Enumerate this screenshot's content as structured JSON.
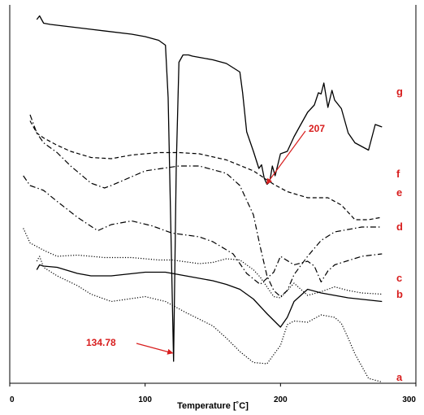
{
  "chart_data": {
    "type": "line",
    "title": "",
    "xlabel": "Temperature [˚C]",
    "ylabel": "",
    "xlim": [
      0,
      300
    ],
    "x_ticks": [
      0,
      100,
      200,
      300
    ],
    "grid": false,
    "legend": "labels at right end of curves",
    "colors": {
      "axis": "#000000",
      "curve": "#000000",
      "annotation": "#d81e1e"
    },
    "series": [
      {
        "name": "a",
        "style": "dotted",
        "x": [
          20,
          22,
          25,
          35,
          50,
          60,
          75,
          100,
          115,
          130,
          150,
          160,
          170,
          180,
          190,
          200,
          205,
          210,
          220,
          230,
          240,
          245,
          250,
          255,
          265,
          275
        ],
        "values": [
          100,
          104,
          95,
          88,
          80,
          73,
          67,
          71,
          67,
          58,
          47,
          37,
          26,
          17,
          16,
          31,
          48,
          51,
          50,
          56,
          54,
          49,
          37,
          24,
          4,
          1
        ]
      },
      {
        "name": "b",
        "style": "solid",
        "x": [
          20,
          22,
          25,
          35,
          50,
          60,
          75,
          100,
          115,
          130,
          150,
          160,
          170,
          180,
          190,
          200,
          205,
          210,
          220,
          230,
          250,
          275
        ],
        "values": [
          93,
          97,
          96,
          95,
          90,
          88,
          88,
          91,
          91,
          88,
          84,
          81,
          77,
          69,
          57,
          46,
          54,
          67,
          77,
          74,
          70,
          67
        ]
      },
      {
        "name": "c",
        "style": "dotted",
        "x": [
          10,
          15,
          25,
          35,
          50,
          70,
          90,
          110,
          120,
          140,
          150,
          160,
          170,
          180,
          185,
          195,
          200,
          210,
          220,
          230,
          240,
          250,
          260,
          275
        ],
        "values": [
          127,
          115,
          109,
          104,
          105,
          103,
          103,
          101,
          101,
          98,
          99,
          102,
          101,
          93,
          87,
          71,
          70,
          82,
          72,
          75,
          79,
          76,
          74,
          73
        ]
      },
      {
        "name": "d",
        "style": "dash-dot",
        "x": [
          10,
          15,
          25,
          35,
          50,
          65,
          75,
          90,
          105,
          120,
          140,
          150,
          165,
          175,
          185,
          195,
          200,
          210,
          220,
          225,
          230,
          235,
          240,
          260,
          275
        ],
        "values": [
          170,
          162,
          158,
          149,
          136,
          125,
          130,
          133,
          129,
          123,
          120,
          116,
          106,
          90,
          81,
          91,
          104,
          97,
          100,
          96,
          83,
          92,
          97,
          104,
          106
        ]
      },
      {
        "name": "e",
        "style": "dash-dot",
        "x": [
          15,
          20,
          25,
          35,
          45,
          60,
          70,
          75,
          100,
          125,
          140,
          160,
          170,
          180,
          185,
          190,
          195,
          200,
          205,
          210,
          220,
          230,
          240,
          250,
          260,
          275
        ],
        "values": [
          220,
          205,
          197,
          189,
          178,
          164,
          160,
          162,
          174,
          178,
          178,
          172,
          162,
          138,
          112,
          88,
          76,
          71,
          76,
          89,
          104,
          117,
          124,
          126,
          128,
          128
        ]
      },
      {
        "name": "f",
        "style": "dashed",
        "x": [
          15,
          20,
          25,
          35,
          45,
          60,
          75,
          90,
          110,
          125,
          140,
          160,
          180,
          195,
          205,
          220,
          235,
          245,
          250,
          255,
          265,
          275
        ],
        "values": [
          215,
          205,
          201,
          195,
          190,
          185,
          184,
          187,
          189,
          189,
          188,
          183,
          174,
          163,
          157,
          152,
          152,
          146,
          140,
          134,
          134,
          136
        ]
      },
      {
        "name": "g",
        "style": "solid",
        "x": [
          20,
          22,
          25,
          30,
          60,
          90,
          100,
          110,
          115,
          117,
          119,
          121,
          123,
          125,
          128,
          130,
          132,
          135,
          140,
          150,
          160,
          170,
          172,
          175,
          180,
          184,
          186,
          188,
          190,
          192,
          194,
          196,
          200,
          205,
          210,
          215,
          220,
          225,
          228,
          230,
          232,
          235,
          238,
          240,
          245,
          250,
          255,
          265,
          270,
          275
        ],
        "values": [
          298,
          301,
          295,
          294,
          290,
          286,
          284,
          281,
          277,
          234,
          128,
          18,
          178,
          263,
          269,
          269,
          269,
          268,
          267,
          265,
          262,
          255,
          238,
          206,
          190,
          176,
          179,
          168,
          163,
          165,
          178,
          170,
          188,
          190,
          202,
          212,
          222,
          228,
          238,
          237,
          246,
          226,
          240,
          232,
          225,
          205,
          197,
          191,
          212,
          210
        ]
      }
    ],
    "labels": [
      "a",
      "b",
      "c",
      "d",
      "e",
      "f",
      "g"
    ],
    "annotations": [
      {
        "text": "134.78",
        "target_x": 121,
        "target_y": 18
      },
      {
        "text": "207",
        "target_x": 188,
        "target_y": 166
      }
    ]
  }
}
